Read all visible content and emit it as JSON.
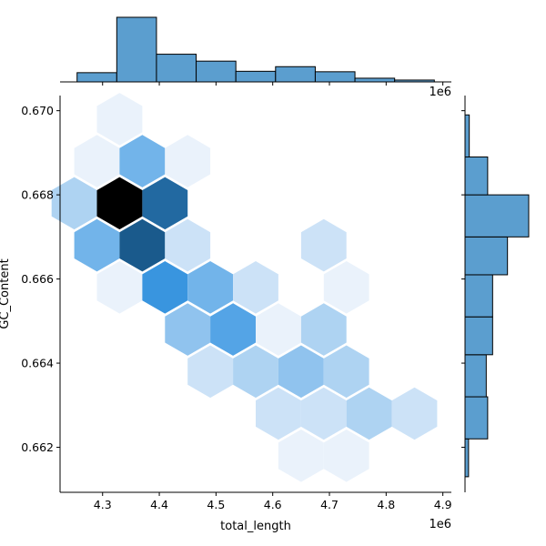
{
  "chart_data": {
    "type": "hexbin-jointplot",
    "xlabel": "total_length",
    "ylabel": "GC_Content",
    "x_offset_label": "1e6",
    "top_hist_offset_label": "1e6",
    "xlim": [
      4.225,
      4.915
    ],
    "ylim": [
      0.66093,
      0.67036
    ],
    "x_ticks": [
      4.3,
      4.4,
      4.5,
      4.6,
      4.7,
      4.8,
      4.9
    ],
    "x_tick_labels": [
      "4.3",
      "4.4",
      "4.5",
      "4.6",
      "4.7",
      "4.8",
      "4.9"
    ],
    "y_ticks": [
      0.662,
      0.664,
      0.666,
      0.668,
      0.67
    ],
    "y_tick_labels": [
      "0.662",
      "0.664",
      "0.666",
      "0.668",
      "0.670"
    ],
    "hex_width": 0.08,
    "hexbins": [
      {
        "x": 4.33,
        "y": 0.6698,
        "count": 1
      },
      {
        "x": 4.29,
        "y": 0.6688,
        "count": 1
      },
      {
        "x": 4.37,
        "y": 0.6688,
        "count": 5
      },
      {
        "x": 4.45,
        "y": 0.6688,
        "count": 1
      },
      {
        "x": 4.25,
        "y": 0.6678,
        "count": 3
      },
      {
        "x": 4.33,
        "y": 0.6678,
        "count": 14
      },
      {
        "x": 4.41,
        "y": 0.6678,
        "count": 10
      },
      {
        "x": 4.29,
        "y": 0.6668,
        "count": 5
      },
      {
        "x": 4.37,
        "y": 0.6668,
        "count": 11
      },
      {
        "x": 4.45,
        "y": 0.6668,
        "count": 2
      },
      {
        "x": 4.69,
        "y": 0.6668,
        "count": 2
      },
      {
        "x": 4.33,
        "y": 0.6658,
        "count": 1
      },
      {
        "x": 4.41,
        "y": 0.6658,
        "count": 7
      },
      {
        "x": 4.49,
        "y": 0.6658,
        "count": 5
      },
      {
        "x": 4.57,
        "y": 0.6658,
        "count": 2
      },
      {
        "x": 4.73,
        "y": 0.6658,
        "count": 1
      },
      {
        "x": 4.45,
        "y": 0.6648,
        "count": 4
      },
      {
        "x": 4.53,
        "y": 0.6648,
        "count": 6
      },
      {
        "x": 4.61,
        "y": 0.6648,
        "count": 1
      },
      {
        "x": 4.69,
        "y": 0.6648,
        "count": 3
      },
      {
        "x": 4.49,
        "y": 0.6638,
        "count": 2
      },
      {
        "x": 4.57,
        "y": 0.6638,
        "count": 3
      },
      {
        "x": 4.65,
        "y": 0.6638,
        "count": 4
      },
      {
        "x": 4.73,
        "y": 0.6638,
        "count": 3
      },
      {
        "x": 4.61,
        "y": 0.6628,
        "count": 2
      },
      {
        "x": 4.69,
        "y": 0.6628,
        "count": 2
      },
      {
        "x": 4.77,
        "y": 0.6628,
        "count": 3
      },
      {
        "x": 4.85,
        "y": 0.6628,
        "count": 2
      },
      {
        "x": 4.65,
        "y": 0.6618,
        "count": 1
      },
      {
        "x": 4.73,
        "y": 0.6618,
        "count": 1
      }
    ],
    "max_count": 14,
    "x_marginal": {
      "bin_edges": [
        4.255,
        4.325,
        4.395,
        4.465,
        4.535,
        4.605,
        4.675,
        4.745,
        4.815,
        4.885
      ],
      "counts": [
        2,
        14,
        6,
        4.5,
        2.3,
        3.3,
        2.2,
        0.8,
        0.4
      ]
    },
    "y_marginal": {
      "bin_edges": [
        0.6613,
        0.6622,
        0.6632,
        0.6642,
        0.6651,
        0.6661,
        0.667,
        0.668,
        0.6689,
        0.6699
      ],
      "counts": [
        0.5,
        3.2,
        3.0,
        3.9,
        3.9,
        6.0,
        9.0,
        3.2,
        0.6
      ]
    },
    "colors": {
      "hex_light": "#eaf2fb",
      "hex_mid": "#3a97e2",
      "hex_dark": "#175484",
      "hex_max": "#000000",
      "hist_fill": "#5b9ecf",
      "hist_edge": "#000000"
    },
    "grid": false,
    "legend": "none"
  }
}
